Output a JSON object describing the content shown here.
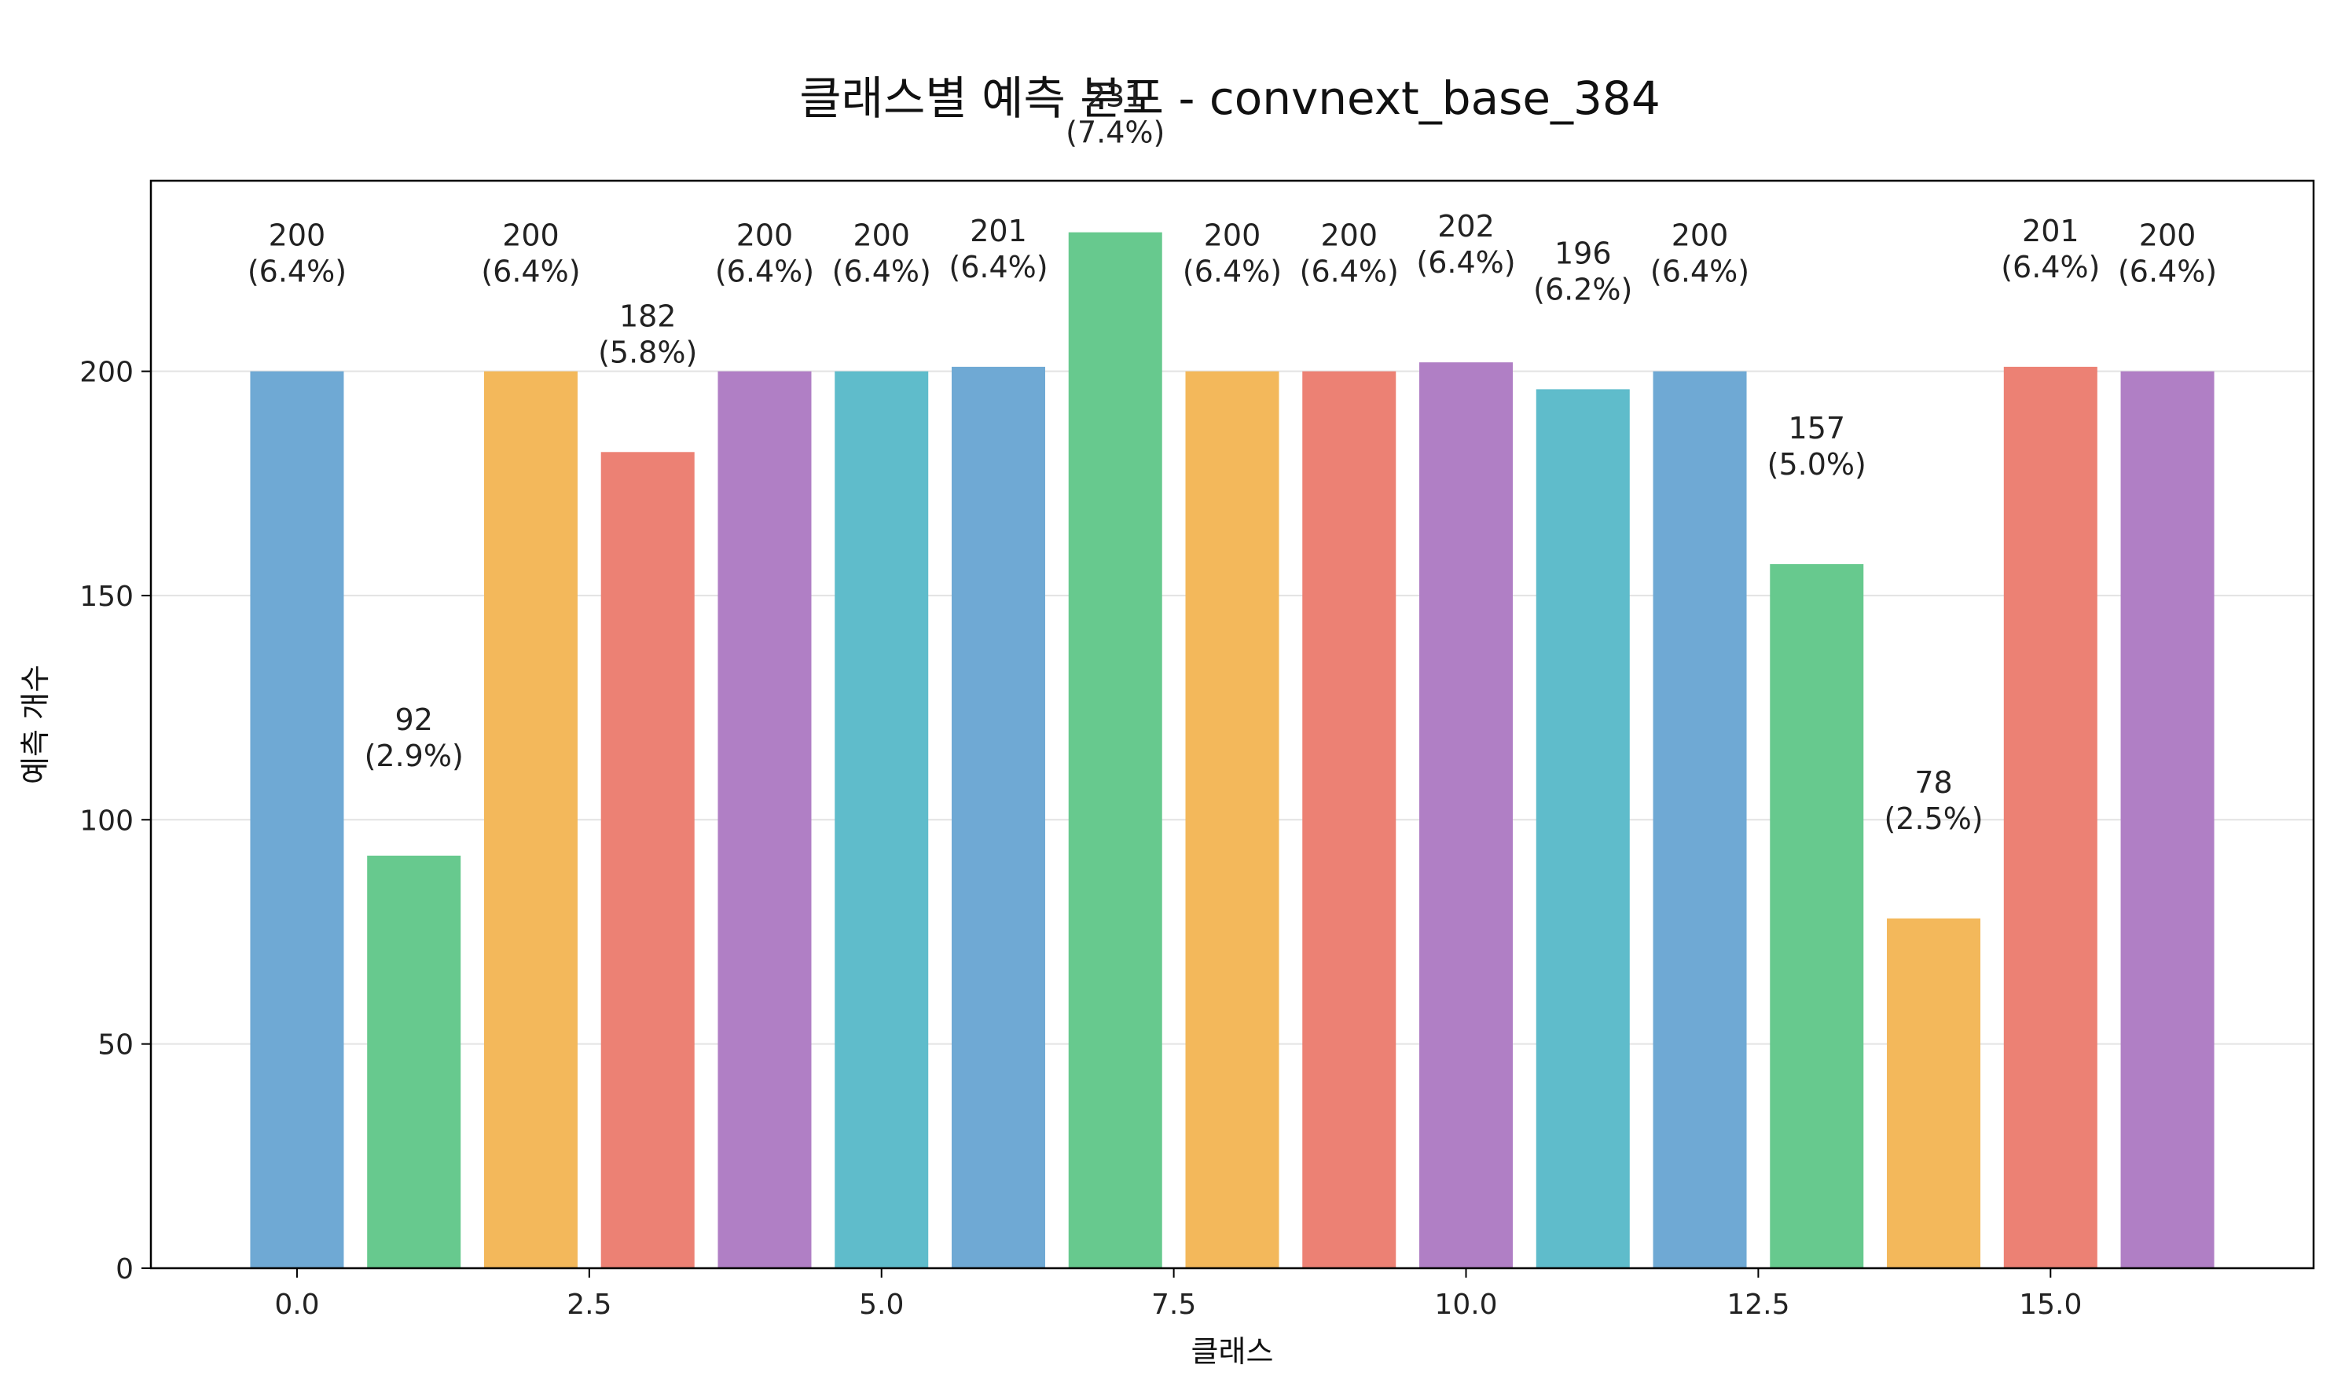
{
  "chart_data": {
    "type": "bar",
    "title": "클래스별 예측 분포 - convnext_base_384",
    "xlabel": "클래스",
    "ylabel": "예측 개수",
    "x": [
      0,
      1,
      2,
      3,
      4,
      5,
      6,
      7,
      8,
      9,
      10,
      11,
      12,
      13,
      14,
      15,
      16
    ],
    "values": [
      200,
      92,
      200,
      182,
      200,
      200,
      201,
      231,
      200,
      200,
      202,
      196,
      200,
      157,
      78,
      201,
      200
    ],
    "data_labels": [
      "200\n(6.4%)",
      "92\n(2.9%)",
      "200\n(6.4%)",
      "182\n(5.8%)",
      "200\n(6.4%)",
      "200\n(6.4%)",
      "201\n(6.4%)",
      "231\n(7.4%)",
      "200\n(6.4%)",
      "200\n(6.4%)",
      "202\n(6.4%)",
      "196\n(6.2%)",
      "200\n(6.4%)",
      "157\n(5.0%)",
      "78\n(2.5%)",
      "201\n(6.4%)",
      "200\n(6.4%)"
    ],
    "colors": [
      "#6fa9d4",
      "#67c98e",
      "#f3b85b",
      "#ec8174",
      "#b07fc5",
      "#5fbccb"
    ],
    "xticks": [
      "0.0",
      "2.5",
      "5.0",
      "7.5",
      "10.0",
      "12.5",
      "15.0"
    ],
    "xtick_values": [
      0,
      2.5,
      5,
      7.5,
      10,
      12.5,
      15
    ],
    "yticks": [
      "0",
      "50",
      "100",
      "150",
      "200"
    ],
    "ytick_values": [
      0,
      50,
      100,
      150,
      200
    ],
    "xlim": [
      -1.25,
      17.25
    ],
    "ylim": [
      0,
      242.5
    ],
    "grid": "y"
  }
}
